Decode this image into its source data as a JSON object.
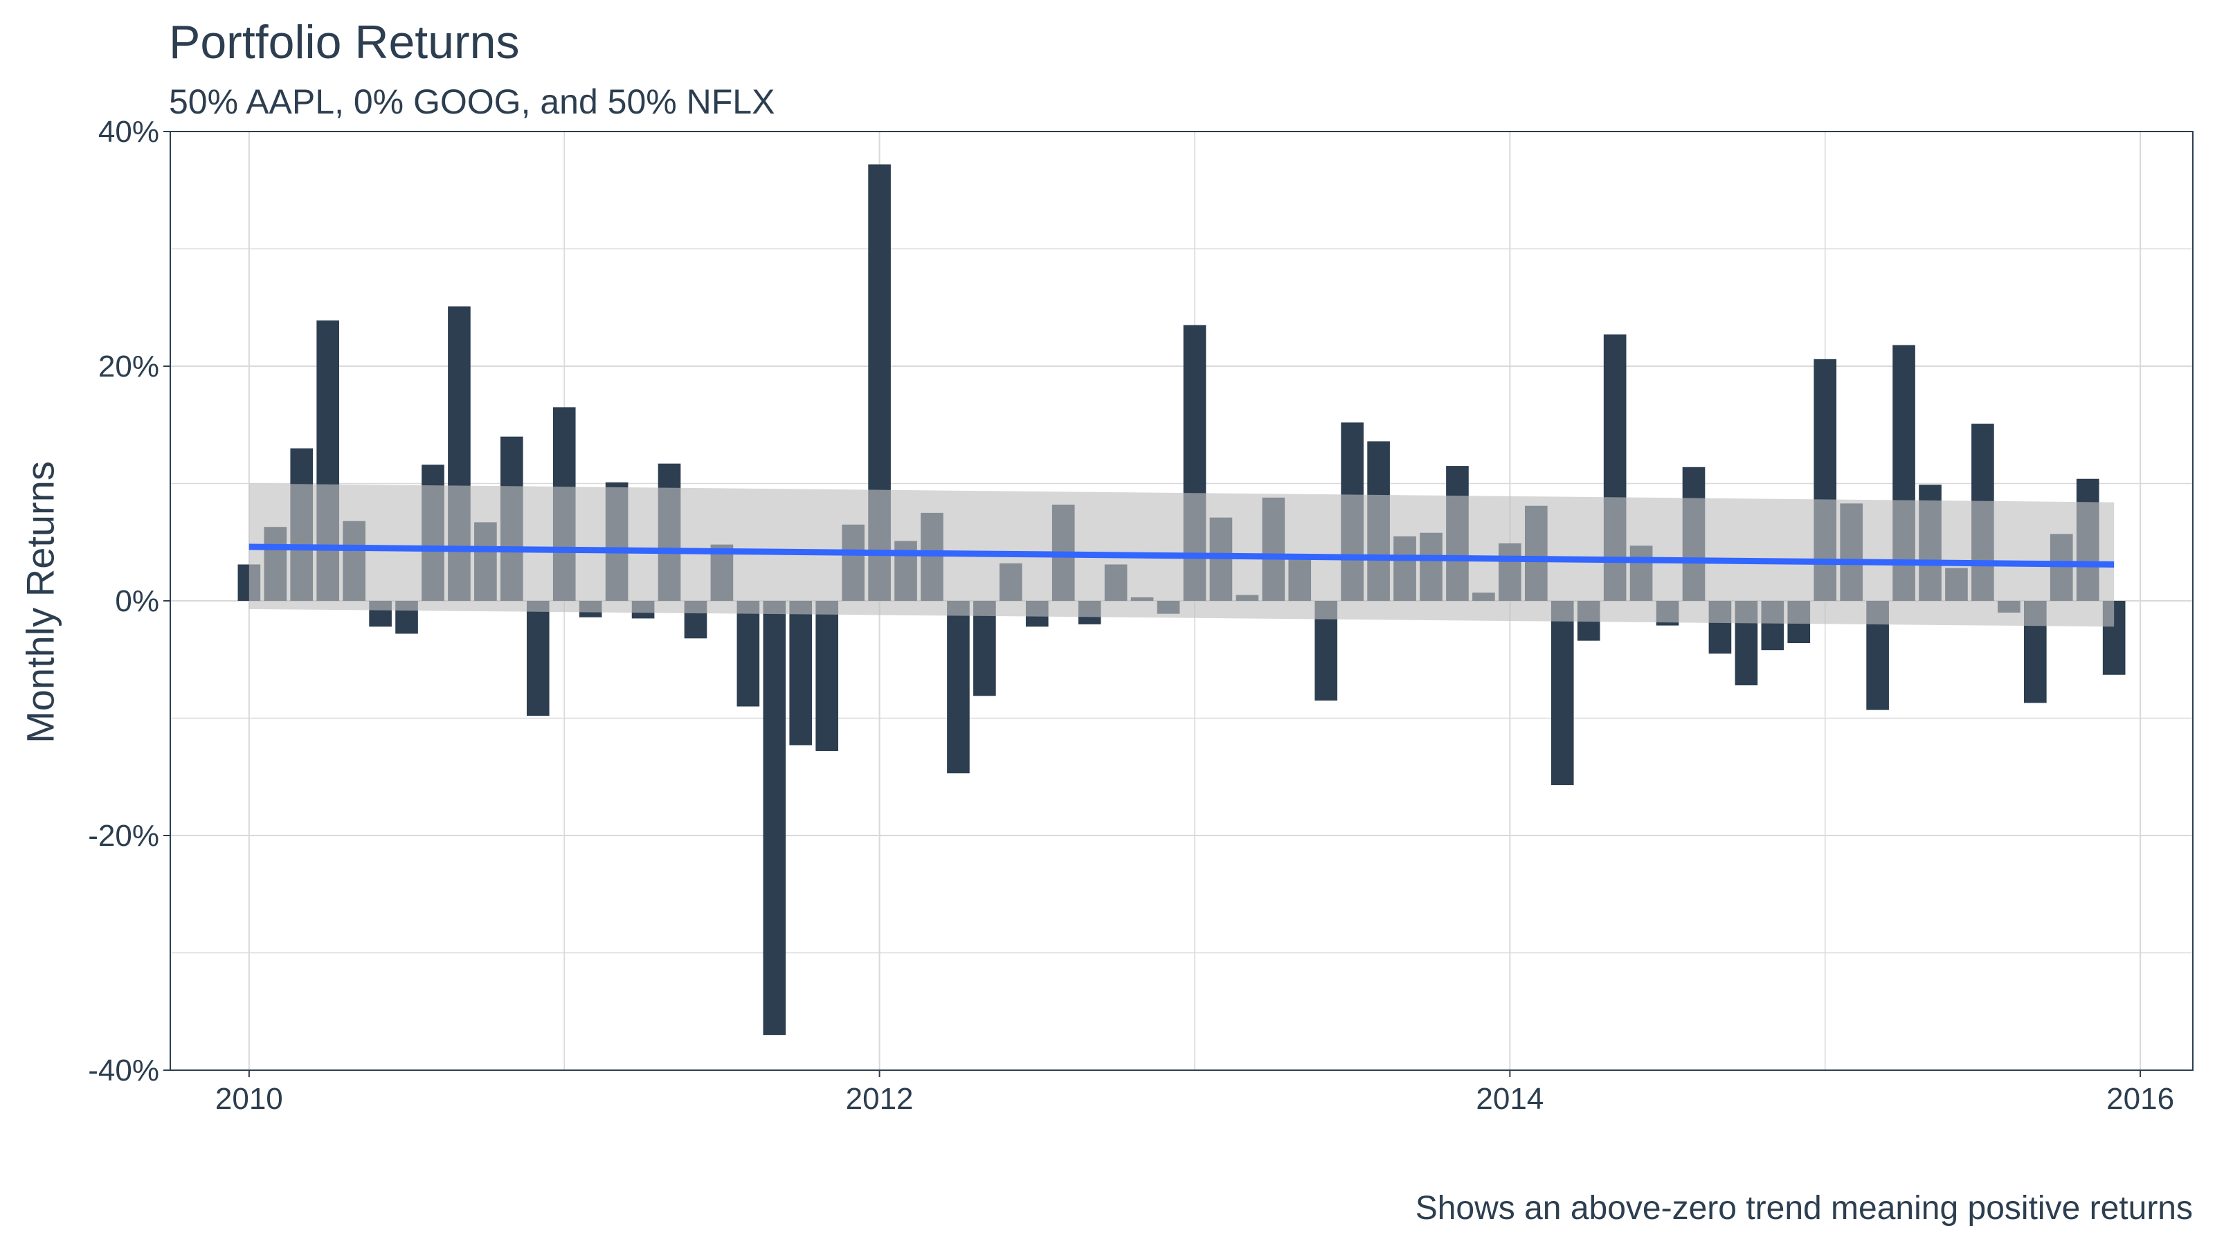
{
  "chart_data": {
    "type": "bar",
    "title": "Portfolio Returns",
    "subtitle": "50% AAPL, 0% GOOG, and 50% NFLX",
    "ylabel": "Monthly Returns",
    "xlabel": "",
    "caption": "Shows an above-zero trend meaning positive returns",
    "x_start": "2010-01",
    "x_end": "2015-12",
    "xlim": [
      "2009-10",
      "2016-03"
    ],
    "ylim": [
      -0.4,
      0.4
    ],
    "yticks": [
      -0.4,
      -0.2,
      0,
      0.2,
      0.4
    ],
    "ytick_labels": [
      "-40%",
      "-20%",
      "0%",
      "20%",
      "40%"
    ],
    "xticks": [
      2010,
      2012,
      2014,
      2016
    ],
    "xtick_labels": [
      "2010",
      "2012",
      "2014",
      "2016"
    ],
    "grid": true,
    "values": [
      0.031,
      0.063,
      0.13,
      0.239,
      0.068,
      -0.022,
      -0.028,
      0.116,
      0.251,
      0.067,
      0.14,
      -0.098,
      0.165,
      -0.014,
      0.101,
      -0.015,
      0.117,
      -0.032,
      0.048,
      -0.09,
      -0.37,
      -0.123,
      -0.128,
      0.065,
      0.372,
      0.051,
      0.075,
      -0.147,
      -0.081,
      0.032,
      -0.022,
      0.082,
      -0.02,
      0.031,
      0.003,
      -0.011,
      0.235,
      0.071,
      0.005,
      0.088,
      0.038,
      -0.085,
      0.152,
      0.136,
      0.055,
      0.058,
      0.115,
      0.007,
      0.049,
      0.081,
      -0.157,
      -0.034,
      0.227,
      0.047,
      -0.021,
      0.114,
      -0.045,
      -0.072,
      -0.042,
      -0.036,
      0.206,
      0.083,
      -0.093,
      0.218,
      0.099,
      0.028,
      0.151,
      -0.01,
      -0.087,
      0.057,
      0.104,
      -0.063
    ],
    "trend": {
      "start": 0.046,
      "end": 0.031,
      "band_start": [
        -0.007,
        0.1
      ],
      "band_end": [
        -0.022,
        0.084
      ]
    },
    "colors": {
      "bar": "#2c3e50",
      "trend": "#3366ff",
      "band": "#bfbfbf",
      "grid": "#d9d9d9",
      "frame": "#2c3e50"
    }
  }
}
